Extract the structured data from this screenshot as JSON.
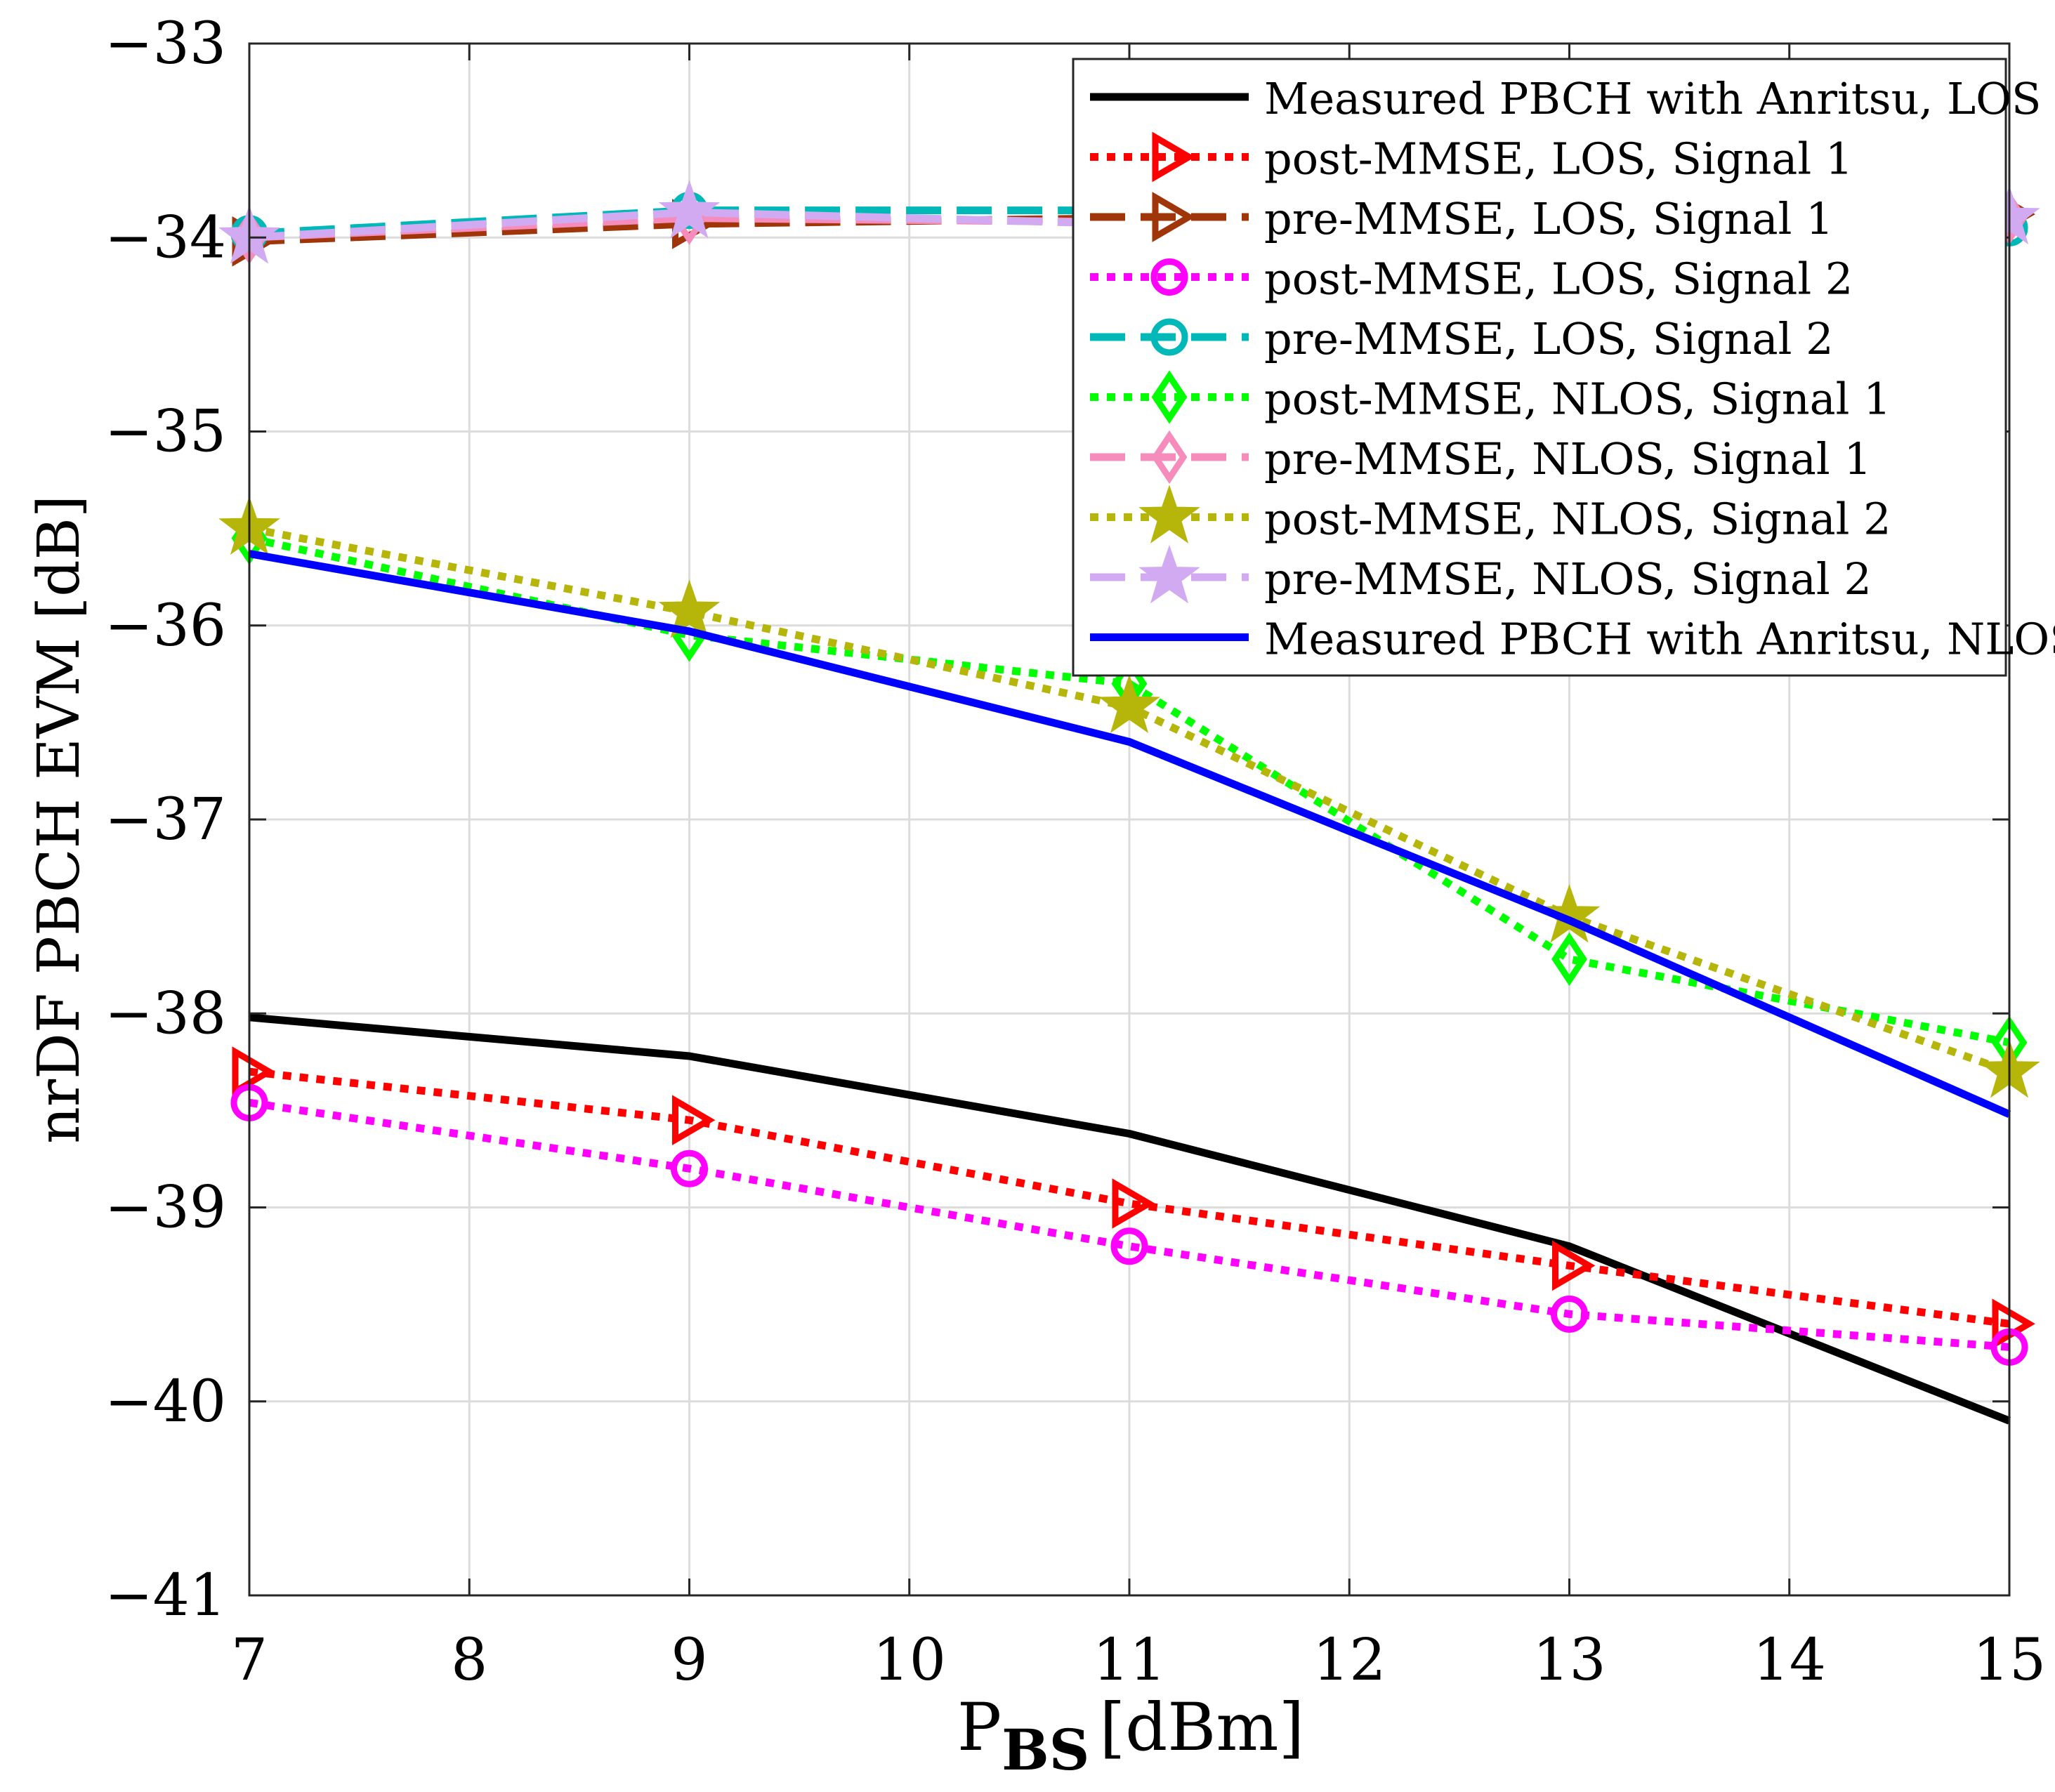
{
  "chart_data": {
    "type": "line",
    "title": "",
    "xlabel_main": "P",
    "xlabel_sub": "BS",
    "xlabel_unit": "[dBm]",
    "ylabel": "nrDF PBCH EVM [dB]",
    "xlim": [
      7,
      15
    ],
    "ylim": [
      -41,
      -33
    ],
    "grid": true,
    "legend_position": "top-right",
    "x_ticks": [
      7,
      8,
      9,
      10,
      11,
      12,
      13,
      14,
      15
    ],
    "y_ticks": [
      -41,
      -40,
      -39,
      -38,
      -37,
      -36,
      -35,
      -34,
      -33
    ],
    "x_tick_labels": [
      "7",
      "8",
      "9",
      "10",
      "11",
      "12",
      "13",
      "14",
      "15"
    ],
    "y_tick_labels": [
      "−41",
      "−40",
      "−39",
      "−38",
      "−37",
      "−36",
      "−35",
      "−34",
      "−33"
    ],
    "x": [
      7,
      9,
      11,
      13,
      15
    ],
    "series": [
      {
        "name": "Measured PBCH with Anritsu, LOS",
        "color": "#000000",
        "style": "solid",
        "marker": "none",
        "values": [
          -38.02,
          -38.22,
          -38.62,
          -39.2,
          -40.1
        ]
      },
      {
        "name": "post-MMSE, LOS, Signal 1",
        "color": "#ff0000",
        "style": "dotted",
        "marker": "triangle-right",
        "values": [
          -38.3,
          -38.55,
          -38.98,
          -39.3,
          -39.6
        ]
      },
      {
        "name": "pre-MMSE, LOS, Signal 1",
        "color": "#a0350a",
        "style": "dashed",
        "marker": "triangle-right",
        "values": [
          -34.02,
          -33.93,
          -33.9,
          -33.92,
          -33.88
        ]
      },
      {
        "name": "post-MMSE, LOS, Signal 2",
        "color": "#ff00ff",
        "style": "dotted",
        "marker": "circle",
        "values": [
          -38.46,
          -38.8,
          -39.2,
          -39.55,
          -39.72
        ]
      },
      {
        "name": "pre-MMSE, LOS, Signal 2",
        "color": "#00b8b8",
        "style": "dashed",
        "marker": "circle",
        "values": [
          -33.98,
          -33.86,
          -33.86,
          -33.92,
          -33.95
        ]
      },
      {
        "name": "post-MMSE, NLOS, Signal 1",
        "color": "#00ff00",
        "style": "dotted",
        "marker": "diamond",
        "values": [
          -35.55,
          -36.05,
          -36.3,
          -37.72,
          -38.15
        ]
      },
      {
        "name": "pre-MMSE, NLOS, Signal 1",
        "color": "#f58cbc",
        "style": "dashed",
        "marker": "diamond",
        "values": [
          -34.0,
          -33.9,
          -33.92,
          -33.93,
          -33.9
        ]
      },
      {
        "name": "post-MMSE, NLOS, Signal 2",
        "color": "#b5b50a",
        "style": "dotted",
        "marker": "star",
        "values": [
          -35.5,
          -35.93,
          -36.42,
          -37.5,
          -38.3
        ]
      },
      {
        "name": "pre-MMSE, NLOS, Signal 2",
        "color": "#d2aaf2",
        "style": "dashed",
        "marker": "star",
        "values": [
          -34.0,
          -33.87,
          -33.93,
          -33.95,
          -33.9
        ]
      },
      {
        "name": "Measured PBCH with Anritsu, NLOS",
        "color": "#0000ff",
        "style": "solid",
        "marker": "none",
        "values": [
          -35.63,
          -36.03,
          -36.6,
          -37.52,
          -38.52
        ]
      }
    ]
  }
}
